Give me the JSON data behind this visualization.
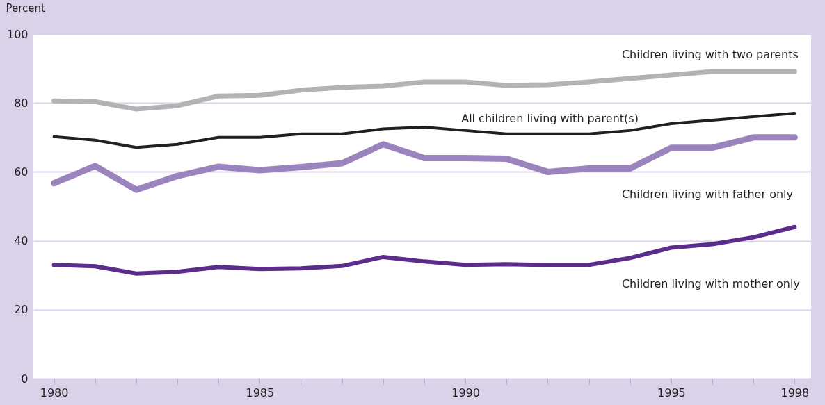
{
  "chart_data": {
    "type": "line",
    "ylabel": "Percent",
    "x": [
      1980,
      1981,
      1982,
      1983,
      1984,
      1985,
      1986,
      1987,
      1988,
      1989,
      1990,
      1991,
      1992,
      1993,
      1994,
      1995,
      1996,
      1997,
      1998
    ],
    "xlim": [
      1979.5,
      1998.4
    ],
    "xticks": [
      1980,
      {
        "value": 1981,
        "label": null
      },
      {
        "value": 1982,
        "label": null
      },
      {
        "value": 1983,
        "label": null
      },
      {
        "value": 1984,
        "label": null
      },
      1985,
      {
        "value": 1986,
        "label": null
      },
      {
        "value": 1987,
        "label": null
      },
      {
        "value": 1988,
        "label": null
      },
      {
        "value": 1989,
        "label": null
      },
      1990,
      {
        "value": 1991,
        "label": null
      },
      {
        "value": 1992,
        "label": null
      },
      {
        "value": 1993,
        "label": null
      },
      {
        "value": 1994,
        "label": null
      },
      1995,
      {
        "value": 1996,
        "label": null
      },
      {
        "value": 1997,
        "label": null
      },
      1998
    ],
    "ylim": [
      0,
      100
    ],
    "yticks": [
      0,
      20,
      40,
      60,
      80,
      100
    ],
    "grid": "y",
    "legend": false,
    "marker": "none",
    "line_style": "solid",
    "series": [
      {
        "name": "Children living with two parents",
        "color": "#b3b3b3",
        "values": [
          80.6,
          80.4,
          78.2,
          79.2,
          82,
          82.2,
          83.7,
          84.5,
          84.9,
          86.1,
          86.1,
          85.1,
          85.3,
          86.1,
          87.1,
          88.1,
          89.1,
          89.1,
          89.1
        ]
      },
      {
        "name": "All children living with parent(s)",
        "color": "#231f20",
        "values": [
          70.2,
          69.2,
          67.1,
          68,
          70,
          70,
          71,
          71,
          72.5,
          73,
          72,
          71,
          71,
          71,
          72,
          74,
          75,
          76,
          77
        ]
      },
      {
        "name": "Children living with father only",
        "color": "#9b84bd",
        "values": [
          56.7,
          61.7,
          54.8,
          58.8,
          61.5,
          60.5,
          61.4,
          62.5,
          68,
          64,
          64,
          63.8,
          60,
          61,
          61,
          67,
          67,
          70,
          70
        ]
      },
      {
        "name": "Children living with mother only",
        "color": "#5a2d8c",
        "values": [
          33,
          32.6,
          30.5,
          31,
          32.4,
          31.8,
          32,
          32.7,
          35.3,
          34,
          33,
          33.2,
          33,
          33,
          35,
          38,
          39,
          41,
          44
        ]
      }
    ]
  }
}
